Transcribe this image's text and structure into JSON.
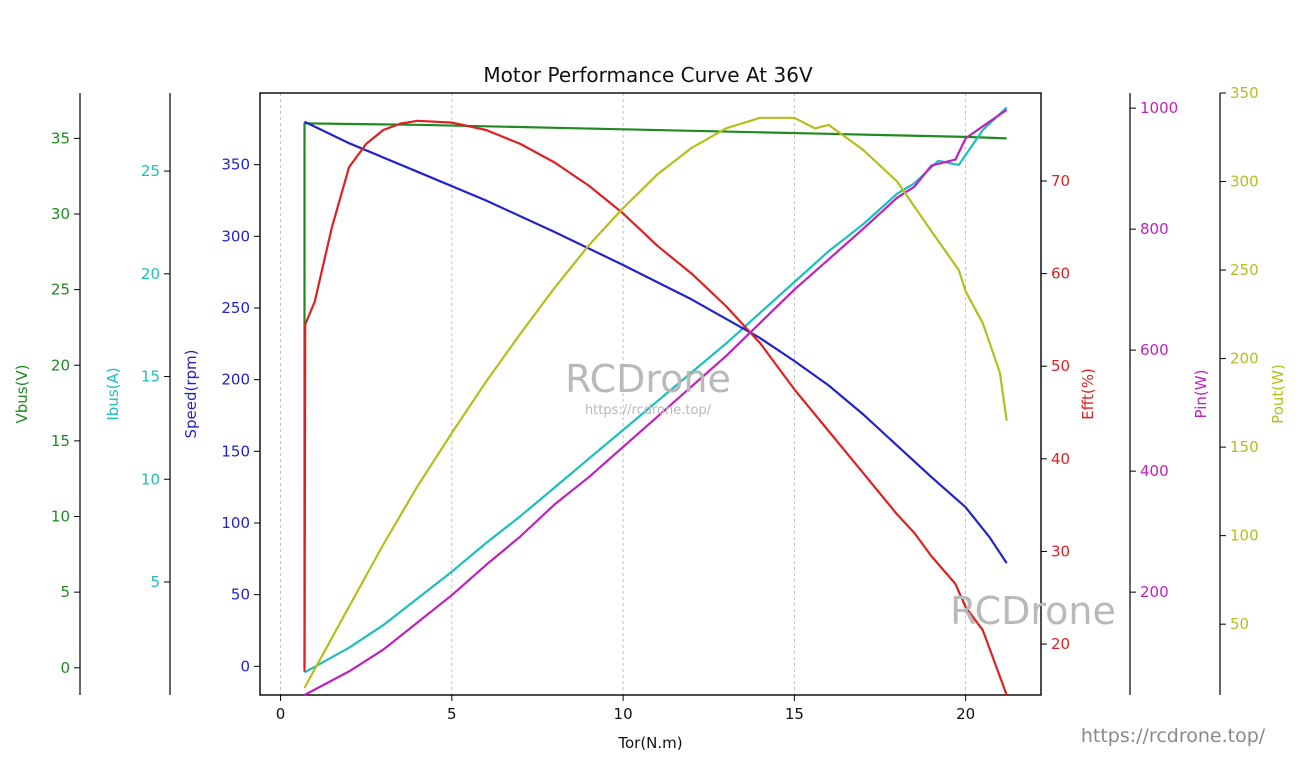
{
  "chart_data": {
    "type": "line",
    "title": "Motor Performance Curve At 36V",
    "xlabel": "Tor(N.m)",
    "xlim": [
      -0.6,
      22.2
    ],
    "xticks": [
      0,
      5,
      10,
      15,
      20
    ],
    "grid": "vertical dashed",
    "axes": [
      {
        "id": "vbus",
        "label": "Vbus(V)",
        "color": "#1f8a1f",
        "position": "left-outer",
        "ylim": [
          -1.8,
          38
        ],
        "ticks": [
          0,
          5,
          10,
          15,
          20,
          25,
          30,
          35
        ]
      },
      {
        "id": "ibus",
        "label": "Ibus(A)",
        "color": "#1abfbf",
        "position": "left-middle",
        "ylim": [
          -0.5,
          28.8
        ],
        "ticks": [
          5,
          10,
          15,
          20,
          25
        ]
      },
      {
        "id": "speed",
        "label": "Speed(rpm)",
        "color": "#2222cc",
        "position": "left-main",
        "ylim": [
          -20,
          400
        ],
        "ticks": [
          0,
          50,
          100,
          150,
          200,
          250,
          300,
          350
        ]
      },
      {
        "id": "efft",
        "label": "Efft(%)",
        "color": "#e02020",
        "position": "right-main",
        "ylim": [
          14.5,
          79.5
        ],
        "ticks": [
          20,
          30,
          40,
          50,
          60,
          70
        ]
      },
      {
        "id": "pin",
        "label": "Pin(W)",
        "color": "#c020c0",
        "position": "right-middle",
        "ylim": [
          30,
          1025
        ],
        "ticks": [
          200,
          400,
          600,
          800,
          1000
        ]
      },
      {
        "id": "pout",
        "label": "Pout(W)",
        "color": "#b5bf1a",
        "position": "right-outer",
        "ylim": [
          10,
          350
        ],
        "ticks": [
          50,
          100,
          150,
          200,
          250,
          300,
          350
        ]
      }
    ],
    "series": [
      {
        "name": "Vbus(V)",
        "axis": "vbus",
        "color": "#1f8a1f",
        "points": [
          [
            0.7,
            0
          ],
          [
            0.7,
            36
          ],
          [
            2,
            35.95
          ],
          [
            4,
            35.9
          ],
          [
            6,
            35.8
          ],
          [
            8,
            35.7
          ],
          [
            10,
            35.6
          ],
          [
            12,
            35.5
          ],
          [
            14,
            35.4
          ],
          [
            16,
            35.3
          ],
          [
            18,
            35.2
          ],
          [
            20,
            35.1
          ],
          [
            21.2,
            35.0
          ]
        ]
      },
      {
        "name": "Ibus(A)",
        "axis": "ibus",
        "color": "#1abfbf",
        "points": [
          [
            0.7,
            0.6
          ],
          [
            2,
            1.8
          ],
          [
            3,
            2.9
          ],
          [
            4,
            4.2
          ],
          [
            5,
            5.5
          ],
          [
            6,
            6.9
          ],
          [
            7,
            8.2
          ],
          [
            8,
            9.6
          ],
          [
            9,
            11.0
          ],
          [
            10,
            12.4
          ],
          [
            11,
            13.8
          ],
          [
            12,
            15.2
          ],
          [
            13,
            16.6
          ],
          [
            14,
            18.1
          ],
          [
            15,
            19.6
          ],
          [
            16,
            21.1
          ],
          [
            17,
            22.4
          ],
          [
            18,
            23.9
          ],
          [
            18.5,
            24.4
          ],
          [
            19.2,
            25.5
          ],
          [
            19.8,
            25.3
          ],
          [
            20.5,
            27.0
          ],
          [
            21.2,
            28.1
          ]
        ]
      },
      {
        "name": "Speed(rpm)",
        "axis": "speed",
        "color": "#2222cc",
        "points": [
          [
            0.7,
            380
          ],
          [
            2,
            365
          ],
          [
            4,
            345
          ],
          [
            6,
            325
          ],
          [
            8,
            303
          ],
          [
            10,
            280
          ],
          [
            12,
            256
          ],
          [
            14,
            229
          ],
          [
            15,
            213
          ],
          [
            16,
            196
          ],
          [
            17,
            176
          ],
          [
            18,
            154
          ],
          [
            19,
            132
          ],
          [
            20,
            111
          ],
          [
            20.7,
            90
          ],
          [
            21.2,
            72
          ]
        ]
      },
      {
        "name": "Efft(%)",
        "axis": "efft",
        "color": "#e02020",
        "points": [
          [
            0.7,
            17
          ],
          [
            0.72,
            54.5
          ],
          [
            1,
            57
          ],
          [
            1.5,
            65
          ],
          [
            2,
            71.5
          ],
          [
            2.5,
            74
          ],
          [
            3,
            75.5
          ],
          [
            3.5,
            76.2
          ],
          [
            4,
            76.5
          ],
          [
            5,
            76.3
          ],
          [
            6,
            75.5
          ],
          [
            7,
            74
          ],
          [
            8,
            72
          ],
          [
            9,
            69.5
          ],
          [
            10,
            66.5
          ],
          [
            11,
            63
          ],
          [
            12,
            60
          ],
          [
            13,
            56.5
          ],
          [
            14,
            52.5
          ],
          [
            15,
            47.5
          ],
          [
            16,
            43
          ],
          [
            17,
            38.5
          ],
          [
            18,
            34
          ],
          [
            18.5,
            32
          ],
          [
            19,
            29.5
          ],
          [
            19.7,
            26.5
          ],
          [
            20,
            24
          ],
          [
            20.5,
            21.5
          ],
          [
            21.2,
            14.5
          ]
        ]
      },
      {
        "name": "Pin(W)",
        "axis": "pin",
        "color": "#c020c0",
        "points": [
          [
            0.7,
            30
          ],
          [
            2,
            69
          ],
          [
            3,
            105
          ],
          [
            4,
            150
          ],
          [
            5,
            195
          ],
          [
            6,
            245
          ],
          [
            7,
            292
          ],
          [
            8,
            345
          ],
          [
            9,
            390
          ],
          [
            10,
            440
          ],
          [
            11,
            490
          ],
          [
            12,
            540
          ],
          [
            13,
            590
          ],
          [
            14,
            645
          ],
          [
            15,
            700
          ],
          [
            16,
            750
          ],
          [
            17,
            800
          ],
          [
            18,
            852
          ],
          [
            18.5,
            870
          ],
          [
            19,
            905
          ],
          [
            19.7,
            915
          ],
          [
            20,
            950
          ],
          [
            20.5,
            970
          ],
          [
            21.2,
            997
          ]
        ]
      },
      {
        "name": "Pout(W)",
        "axis": "pout",
        "color": "#b5bf1a",
        "points": [
          [
            0.7,
            14
          ],
          [
            2,
            60
          ],
          [
            3,
            95
          ],
          [
            4,
            128
          ],
          [
            5,
            158
          ],
          [
            6,
            187
          ],
          [
            7,
            214
          ],
          [
            8,
            240
          ],
          [
            9,
            264
          ],
          [
            10,
            285
          ],
          [
            11,
            304
          ],
          [
            12,
            319
          ],
          [
            13,
            330
          ],
          [
            14,
            336
          ],
          [
            15,
            336
          ],
          [
            15.6,
            330
          ],
          [
            16,
            332
          ],
          [
            17,
            318
          ],
          [
            18,
            300
          ],
          [
            19,
            272
          ],
          [
            19.8,
            250
          ],
          [
            20,
            238
          ],
          [
            20.5,
            220
          ],
          [
            21,
            192
          ],
          [
            21.2,
            165
          ]
        ]
      }
    ],
    "watermarks": {
      "center_big": "RCDrone",
      "center_small": "https://rcdrone.top/",
      "corner_big": "RCDrone",
      "corner_url": "https://rcdrone.top/"
    }
  }
}
